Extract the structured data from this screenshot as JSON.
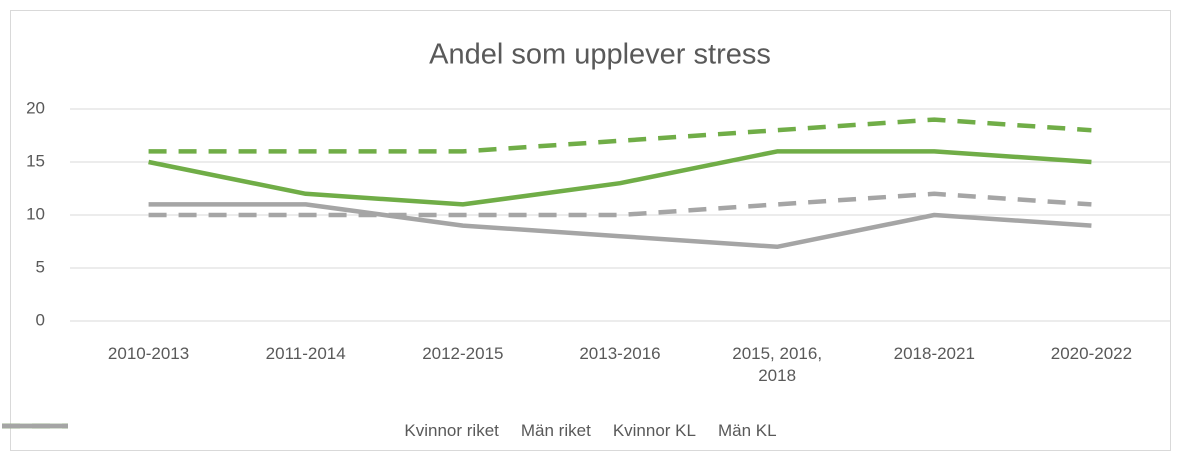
{
  "chart_data": {
    "type": "line",
    "title": "Andel som upplever stress",
    "categories": [
      "2010-2013",
      "2011-2014",
      "2012-2015",
      "2013-2016",
      "2015, 2016, 2018",
      "2018-2021",
      "2020-2022"
    ],
    "series": [
      {
        "name": "Kvinnor riket",
        "color": "#70ad47",
        "dashed": true,
        "values": [
          16,
          16,
          16,
          17,
          18,
          19,
          18
        ]
      },
      {
        "name": "Män riket",
        "color": "#a5a5a5",
        "dashed": true,
        "values": [
          10,
          10,
          10,
          10,
          11,
          12,
          11
        ]
      },
      {
        "name": "Kvinnor KL",
        "color": "#70ad47",
        "dashed": false,
        "values": [
          15,
          12,
          11,
          13,
          16,
          16,
          15
        ]
      },
      {
        "name": "Män KL",
        "color": "#a5a5a5",
        "dashed": false,
        "values": [
          11,
          11,
          9,
          8,
          7,
          10,
          9
        ]
      }
    ],
    "ylim": [
      0,
      20
    ],
    "yticks": [
      0,
      5,
      10,
      15,
      20
    ],
    "grid": true,
    "legend": "bottom"
  }
}
